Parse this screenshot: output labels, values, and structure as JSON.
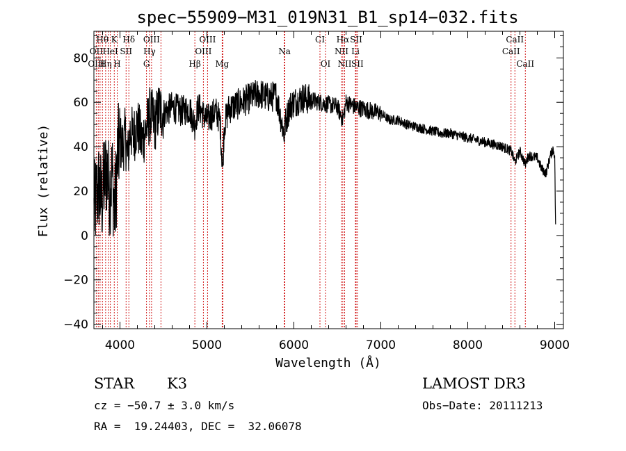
{
  "chart_data": {
    "type": "line",
    "title": "spec−55909−M31_019N31_B1_sp14−032.fits",
    "xlabel": "Wavelength (Å)",
    "ylabel": "Flux (relative)",
    "xlim": [
      3700,
      9100
    ],
    "ylim": [
      -42,
      92
    ],
    "x_ticks": [
      4000,
      5000,
      6000,
      7000,
      8000,
      9000
    ],
    "x_tick_labels": [
      "4000",
      "5000",
      "6000",
      "7000",
      "8000",
      "9000"
    ],
    "y_ticks": [
      -40,
      -20,
      0,
      20,
      40,
      60,
      80
    ],
    "y_tick_labels": [
      "−40",
      "−20",
      "0",
      "20",
      "40",
      "60",
      "80"
    ],
    "series": [
      {
        "name": "flux",
        "color": "#000000",
        "x": [
          3700,
          3730,
          3760,
          3790,
          3820,
          3850,
          3880,
          3910,
          3940,
          3970,
          4000,
          4030,
          4060,
          4090,
          4120,
          4150,
          4200,
          4250,
          4300,
          4350,
          4400,
          4450,
          4500,
          4600,
          4700,
          4800,
          4860,
          4900,
          5000,
          5100,
          5150,
          5180,
          5200,
          5250,
          5300,
          5400,
          5500,
          5600,
          5700,
          5800,
          5890,
          5900,
          5950,
          6000,
          6100,
          6200,
          6300,
          6400,
          6500,
          6563,
          6600,
          6700,
          6800,
          6900,
          7000,
          7100,
          7200,
          7300,
          7400,
          7500,
          7600,
          7700,
          7800,
          7900,
          8000,
          8100,
          8200,
          8300,
          8400,
          8500,
          8542,
          8600,
          8662,
          8700,
          8800,
          8850,
          8900,
          8950,
          8980,
          9000,
          9010
        ],
        "y": [
          10,
          18,
          22,
          15,
          25,
          30,
          20,
          28,
          10,
          35,
          42,
          40,
          45,
          35,
          48,
          44,
          50,
          42,
          48,
          55,
          50,
          57,
          55,
          58,
          56,
          57,
          50,
          58,
          52,
          56,
          52,
          30,
          50,
          57,
          58,
          60,
          62,
          64,
          62,
          63,
          45,
          50,
          58,
          60,
          62,
          61,
          60,
          59,
          58,
          52,
          60,
          58,
          57,
          56,
          55,
          52,
          52,
          50,
          49,
          48,
          47,
          46,
          46,
          45,
          44,
          43,
          42,
          41,
          40,
          38,
          33,
          38,
          32,
          36,
          35,
          30,
          28,
          36,
          39,
          36,
          5
        ]
      }
    ],
    "line_labels": [
      {
        "text": "Hθ",
        "wavelength": 3798,
        "row": 1
      },
      {
        "text": "K",
        "wavelength": 3934,
        "row": 1
      },
      {
        "text": "Hδ",
        "wavelength": 4102,
        "row": 1
      },
      {
        "text": "OIII",
        "wavelength": 4363,
        "row": 1
      },
      {
        "text": "OIII",
        "wavelength": 5007,
        "row": 1
      },
      {
        "text": "CI",
        "wavelength": 6300,
        "row": 1
      },
      {
        "text": "Hα",
        "wavelength": 6563,
        "row": 1
      },
      {
        "text": "SII",
        "wavelength": 6716,
        "row": 1
      },
      {
        "text": "CaII",
        "wavelength": 8542,
        "row": 1
      },
      {
        "text": "OII",
        "wavelength": 3727,
        "row": 2
      },
      {
        "text": "HeI",
        "wavelength": 3889,
        "row": 2
      },
      {
        "text": "SII",
        "wavelength": 4070,
        "row": 2
      },
      {
        "text": "Hγ",
        "wavelength": 4340,
        "row": 2
      },
      {
        "text": "OIII",
        "wavelength": 4959,
        "row": 2
      },
      {
        "text": "Na",
        "wavelength": 5893,
        "row": 2
      },
      {
        "text": "NII",
        "wavelength": 6548,
        "row": 2
      },
      {
        "text": "Li",
        "wavelength": 6708,
        "row": 2
      },
      {
        "text": "CaII",
        "wavelength": 8498,
        "row": 2
      },
      {
        "text": "OIII",
        "wavelength": 3727,
        "row": 3
      },
      {
        "text": "Hη",
        "wavelength": 3835,
        "row": 3
      },
      {
        "text": "H",
        "wavelength": 3968,
        "row": 3
      },
      {
        "text": "G",
        "wavelength": 4305,
        "row": 3
      },
      {
        "text": "Hβ",
        "wavelength": 4861,
        "row": 3
      },
      {
        "text": "Mg",
        "wavelength": 5175,
        "row": 3
      },
      {
        "text": "OI",
        "wavelength": 6364,
        "row": 3
      },
      {
        "text": "NII",
        "wavelength": 6584,
        "row": 3
      },
      {
        "text": "SII",
        "wavelength": 6731,
        "row": 3
      },
      {
        "text": "CaII",
        "wavelength": 8662,
        "row": 3
      }
    ],
    "extra_line_wavelengths": [
      3750,
      3771,
      3869,
      4471,
      5184,
      5890,
      5896
    ]
  },
  "info": {
    "class": "STAR",
    "subclass": "K3",
    "survey": "LAMOST DR3",
    "cz": "cz = −50.7 ± 3.0 km/s",
    "obs_date": "Obs−Date: 20111213",
    "coords": "RA =  19.24403, DEC =  32.06078"
  },
  "colors": {
    "axis": "#000000",
    "marker_line": "#cc0000",
    "background": "#ffffff"
  }
}
